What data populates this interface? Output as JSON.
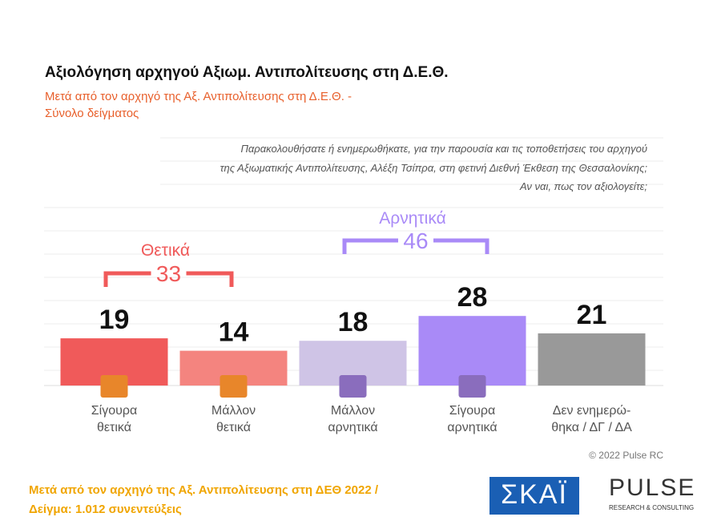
{
  "chart_data": {
    "type": "bar",
    "title": "Αξιολόγηση αρχηγού Αξιωμ. Αντιπολίτευσης στη Δ.Ε.Θ.",
    "subtitle": "Μετά από τον αρχηγό της Αξ. Αντιπολίτευσης στη Δ.Ε.Θ. -\nΣύνολο δείγματος",
    "question": "Παρακολουθήσατε ή ενημερωθήκατε, για την παρουσία και τις τοποθετήσεις του αρχηγού\nτης Αξιωματικής Αντιπολίτευσης, Αλέξη Τσίπρα, στη φετινή Διεθνή Έκθεση της Θεσσαλονίκης;\nΑν ναι, πως τον αξιολογείτε;",
    "categories": [
      "Σίγουρα\nθετικά",
      "Μάλλον\nθετικά",
      "Μάλλον\nαρνητικά",
      "Σίγουρα\nαρνητικά",
      "Δεν ενημερώ-\nθηκα / ΔΓ / ΔΑ"
    ],
    "values": [
      19,
      14,
      18,
      28,
      21
    ],
    "colors": [
      "#f05a5a",
      "#f4847f",
      "#cfc4e6",
      "#a98af7",
      "#999999"
    ],
    "groups": [
      {
        "name": "Θετικά",
        "value": 33,
        "color": "#f05a5a"
      },
      {
        "name": "Αρνητικά",
        "value": 46,
        "color": "#a98af7"
      }
    ],
    "copyright": "© 2022 Pulse RC",
    "footnote": "Μετά από τον αρχηγό της Αξ. Αντιπολίτευσης στη ΔΕΘ  2022  /\nΔείγμα:  1.012 συνεντεύξεις",
    "logos": {
      "skai": "ΣΚΑΪ",
      "pulse": "PULSE",
      "pulse_sub": "RESEARCH & CONSULTING"
    }
  }
}
